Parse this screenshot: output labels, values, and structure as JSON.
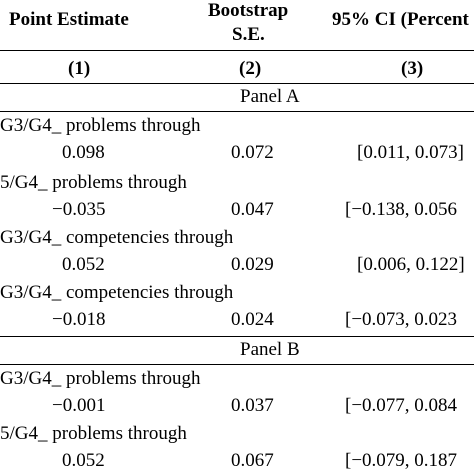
{
  "header": {
    "col1": "Point Estimate",
    "col2_line1": "Bootstrap",
    "col2_line2": "S.E.",
    "col3": "95% CI (Percent",
    "num1": "(1)",
    "num2": "(2)",
    "num3": "(3)"
  },
  "panels": [
    {
      "label": "Panel A",
      "rows": [
        {
          "label": "G3/G4_ problems through",
          "estimate": "0.098",
          "se": "0.072",
          "ci": "[0.011, 0.073]"
        },
        {
          "label": "5/G4_ problems through",
          "estimate": "−0.035",
          "se": "0.047",
          "ci": "[−0.138, 0.056"
        },
        {
          "label": "G3/G4_ competencies through",
          "estimate": "0.052",
          "se": "0.029",
          "ci": "[0.006, 0.122]"
        },
        {
          "label": "G3/G4_ competencies through",
          "estimate": "−0.018",
          "se": "0.024",
          "ci": "[−0.073, 0.023"
        }
      ]
    },
    {
      "label": "Panel B",
      "rows": [
        {
          "label": "G3/G4_ problems through",
          "estimate": "−0.001",
          "se": "0.037",
          "ci": "[−0.077, 0.084"
        },
        {
          "label": "5/G4_ problems through",
          "estimate": "0.052",
          "se": "0.067",
          "ci": "[−0.079, 0.187"
        }
      ]
    }
  ]
}
